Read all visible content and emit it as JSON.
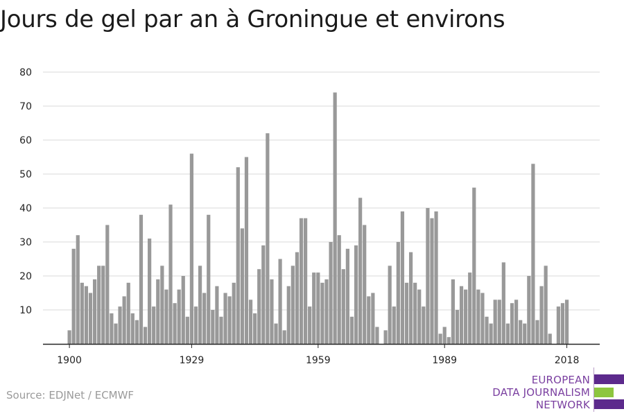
{
  "title": "Jours de gel par an à Groningue et environs",
  "source": "Source: EDJNet / ECMWF",
  "logo": {
    "lines": [
      "EUROPEAN",
      "DATA JOURNALISM",
      "NETWORK"
    ],
    "colors": {
      "purple": "#5c2a8c",
      "green": "#8dc63f",
      "text": "#7a3fa0"
    }
  },
  "colors": {
    "bar": "#999999",
    "grid": "#d9d9d9",
    "axis": "#222222"
  },
  "chart_data": {
    "type": "bar",
    "title": "Jours de gel par an à Groningue et environs",
    "xlabel": "",
    "ylabel": "",
    "ylim": [
      0,
      80
    ],
    "yticks": [
      10,
      20,
      30,
      40,
      50,
      60,
      70,
      80
    ],
    "xticks": [
      1900,
      1929,
      1959,
      1989,
      2018
    ],
    "grid": "horizontal",
    "legend": "none",
    "start_year": 1900,
    "values": [
      4,
      28,
      32,
      18,
      17,
      15,
      19,
      23,
      23,
      35,
      9,
      6,
      11,
      14,
      18,
      9,
      7,
      38,
      5,
      31,
      11,
      19,
      23,
      16,
      41,
      12,
      16,
      20,
      8,
      56,
      11,
      23,
      15,
      38,
      10,
      17,
      8,
      15,
      14,
      18,
      52,
      34,
      55,
      13,
      9,
      22,
      29,
      62,
      19,
      6,
      25,
      4,
      17,
      23,
      27,
      37,
      37,
      11,
      21,
      21,
      18,
      19,
      30,
      74,
      32,
      22,
      28,
      8,
      29,
      43,
      35,
      14,
      15,
      5,
      0,
      4,
      23,
      11,
      30,
      39,
      18,
      27,
      18,
      16,
      11,
      40,
      37,
      39,
      3,
      5,
      2,
      19,
      10,
      17,
      16,
      21,
      46,
      16,
      15,
      8,
      6,
      13,
      13,
      24,
      6,
      12,
      13,
      7,
      6,
      20,
      53,
      7,
      17,
      23,
      3,
      0,
      11,
      12,
      13
    ]
  }
}
